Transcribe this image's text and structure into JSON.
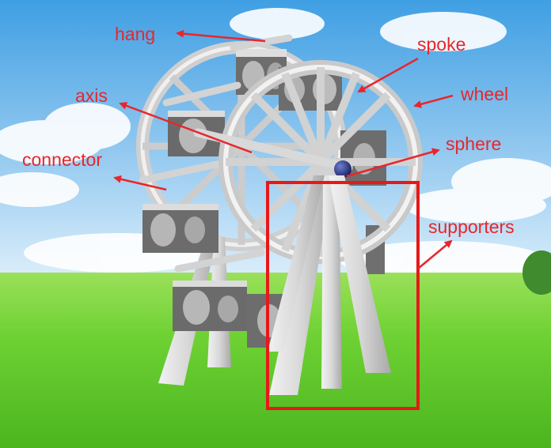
{
  "labels": {
    "hang": "hang",
    "spoke": "spoke",
    "wheel": "wheel",
    "axis": "axis",
    "sphere": "sphere",
    "connector": "connector",
    "supporters": "supporters"
  },
  "colors": {
    "annotation": "#e8262c",
    "structure": "#d9d9d9",
    "sky_top": "#4aa6e6",
    "grass": "#6fd234"
  },
  "icons": {
    "cabin": "face-photo-cube",
    "sphere": "blue-sphere"
  }
}
